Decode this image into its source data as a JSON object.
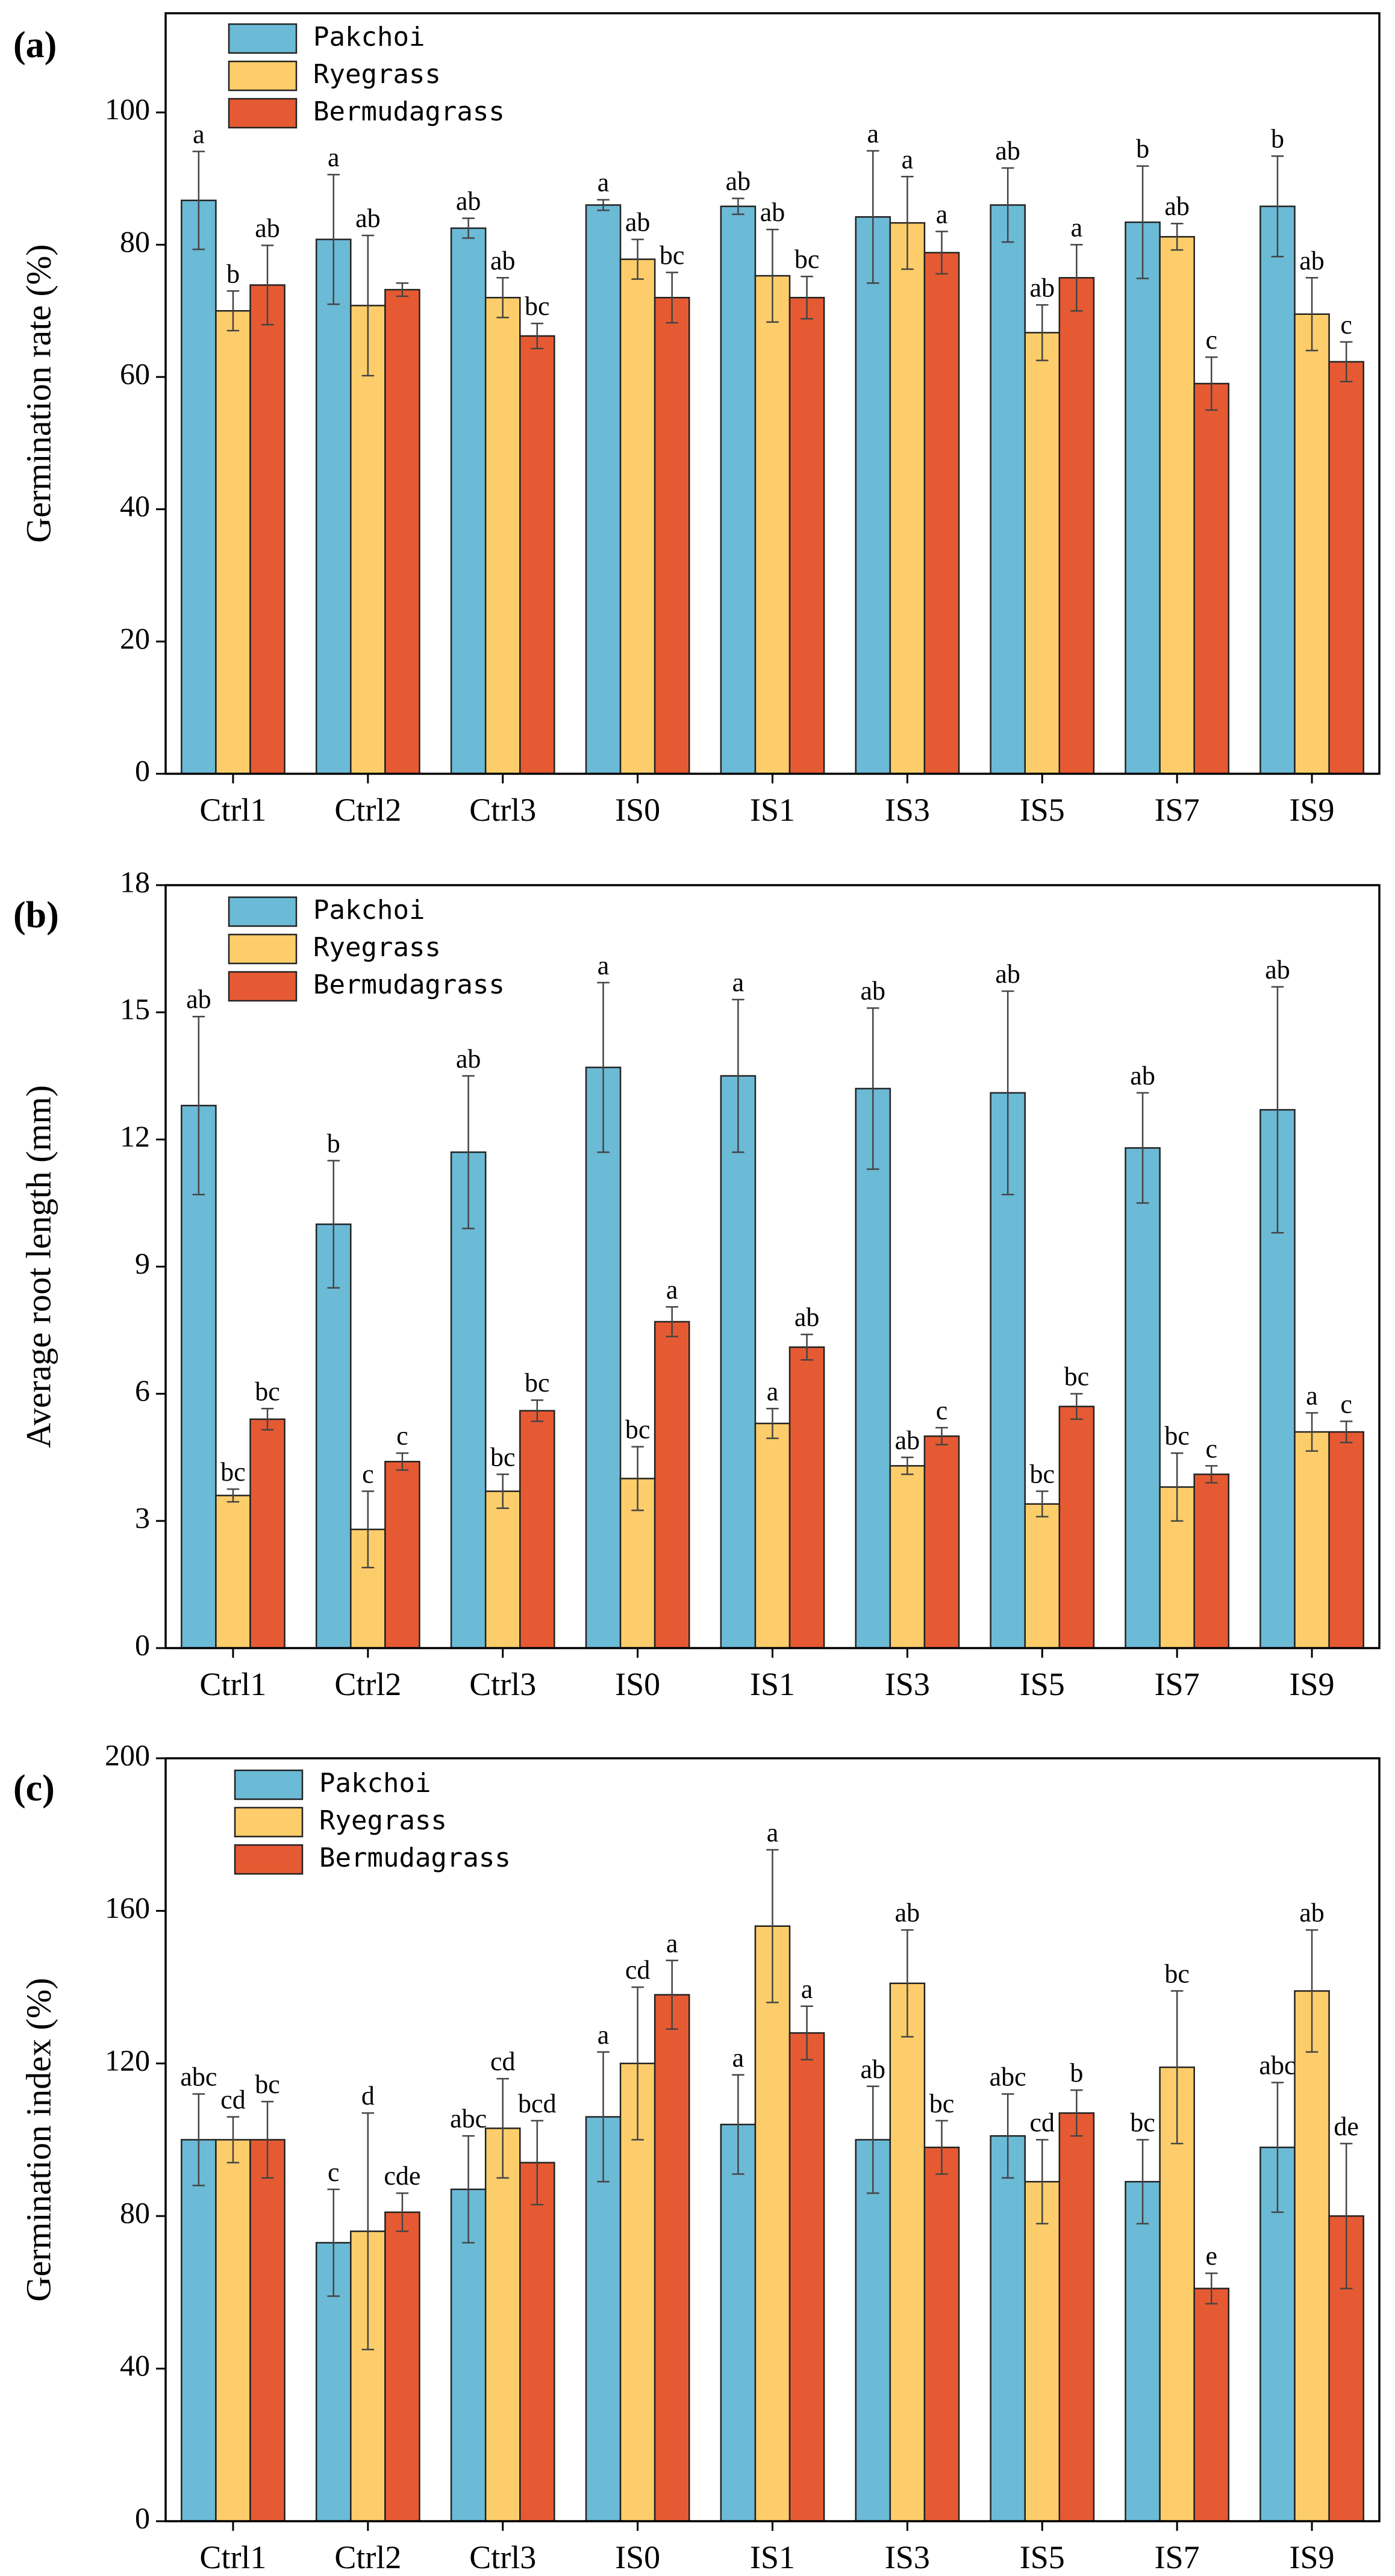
{
  "colors": {
    "Pakchoi": "#6BBAD6",
    "Ryegrass": "#FCCD6A",
    "Bermudagrass": "#E65A33"
  },
  "chart_data": [
    {
      "panel_label": "(a)",
      "type": "bar",
      "title": "",
      "xlabel": "",
      "ylabel": "Germination rate (%)",
      "ylim": [
        0,
        115
      ],
      "yticks": [
        0,
        20,
        40,
        60,
        80,
        100
      ],
      "ytick_labels": [
        "0",
        "20",
        "40",
        "60",
        "80",
        "100"
      ],
      "legend": [
        "Pakchoi",
        "Ryegrass",
        "Bermudagrass"
      ],
      "legend_position": "top-left",
      "categories": [
        "Ctrl1",
        "Ctrl2",
        "Ctrl3",
        "IS0",
        "IS1",
        "IS3",
        "IS5",
        "IS7",
        "IS9"
      ],
      "series": [
        {
          "name": "Pakchoi",
          "values": [
            86.7,
            80.8,
            82.5,
            86.0,
            85.8,
            84.2,
            86.0,
            83.4,
            85.8
          ],
          "errors": [
            7.4,
            9.8,
            1.5,
            0.8,
            1.2,
            10.0,
            5.6,
            8.5,
            7.6
          ],
          "labels": [
            "a",
            "a",
            "ab",
            "a",
            "ab",
            "a",
            "ab",
            "b",
            "b"
          ]
        },
        {
          "name": "Ryegrass",
          "values": [
            70.0,
            70.8,
            72.0,
            77.8,
            75.3,
            83.3,
            66.7,
            81.2,
            69.5
          ],
          "errors": [
            3.0,
            10.6,
            3.0,
            3.0,
            7.0,
            7.0,
            4.2,
            2.0,
            5.5
          ],
          "labels": [
            "b",
            "ab",
            "ab",
            "ab",
            "ab",
            "a",
            "ab",
            "ab",
            "ab"
          ]
        },
        {
          "name": "Bermudagrass",
          "values": [
            73.9,
            73.2,
            66.2,
            72.0,
            72.0,
            78.8,
            75.0,
            59.0,
            62.3
          ],
          "errors": [
            6.0,
            1.0,
            1.9,
            3.8,
            3.2,
            3.2,
            5.0,
            4.0,
            3.0
          ],
          "labels": [
            "ab",
            "",
            "bc",
            "bc",
            "bc",
            "a",
            "a",
            "c",
            "c"
          ]
        }
      ]
    },
    {
      "panel_label": "(b)",
      "type": "bar",
      "title": "",
      "xlabel": "",
      "ylabel": "Average root length (mm)",
      "ylim": [
        0,
        18
      ],
      "yticks": [
        0,
        3,
        6,
        9,
        12,
        15,
        18
      ],
      "ytick_labels": [
        "0",
        "3",
        "6",
        "9",
        "12",
        "15",
        "18"
      ],
      "legend": [
        "Pakchoi",
        "Ryegrass",
        "Bermudagrass"
      ],
      "legend_position": "top-left",
      "categories": [
        "Ctrl1",
        "Ctrl2",
        "Ctrl3",
        "IS0",
        "IS1",
        "IS3",
        "IS5",
        "IS7",
        "IS9"
      ],
      "series": [
        {
          "name": "Pakchoi",
          "values": [
            12.8,
            10.0,
            11.7,
            13.7,
            13.5,
            13.2,
            13.1,
            11.8,
            12.7
          ],
          "errors": [
            2.1,
            1.5,
            1.8,
            2.0,
            1.8,
            1.9,
            2.4,
            1.3,
            2.9
          ],
          "labels": [
            "ab",
            "b",
            "ab",
            "a",
            "a",
            "ab",
            "ab",
            "ab",
            "ab"
          ]
        },
        {
          "name": "Ryegrass",
          "values": [
            3.6,
            2.8,
            3.7,
            4.0,
            5.3,
            4.3,
            3.4,
            3.8,
            5.1
          ],
          "errors": [
            0.15,
            0.9,
            0.4,
            0.75,
            0.35,
            0.2,
            0.3,
            0.8,
            0.45
          ],
          "labels": [
            "bc",
            "c",
            "bc",
            "bc",
            "a",
            "ab",
            "bc",
            "bc",
            "a"
          ]
        },
        {
          "name": "Bermudagrass",
          "values": [
            5.4,
            4.4,
            5.6,
            7.7,
            7.1,
            5.0,
            5.7,
            4.1,
            5.1
          ],
          "errors": [
            0.25,
            0.2,
            0.25,
            0.35,
            0.3,
            0.2,
            0.3,
            0.2,
            0.25
          ],
          "labels": [
            "bc",
            "c",
            "bc",
            "a",
            "ab",
            "c",
            "bc",
            "c",
            "c"
          ]
        }
      ]
    },
    {
      "panel_label": "(c)",
      "type": "bar",
      "title": "",
      "xlabel": "",
      "ylabel": "Germination index (%)",
      "ylim": [
        0,
        200
      ],
      "yticks": [
        0,
        40,
        80,
        120,
        160,
        200
      ],
      "ytick_labels": [
        "0",
        "40",
        "80",
        "120",
        "160",
        "200"
      ],
      "legend": [
        "Pakchoi",
        "Ryegrass",
        "Bermudagrass"
      ],
      "legend_position": "top-left",
      "categories": [
        "Ctrl1",
        "Ctrl2",
        "Ctrl3",
        "IS0",
        "IS1",
        "IS3",
        "IS5",
        "IS7",
        "IS9"
      ],
      "series": [
        {
          "name": "Pakchoi",
          "values": [
            100,
            73,
            87,
            106,
            104,
            100,
            101,
            89,
            98
          ],
          "errors": [
            12,
            14,
            14,
            17,
            13,
            14,
            11,
            11,
            17
          ],
          "labels": [
            "abc",
            "c",
            "abc",
            "a",
            "a",
            "ab",
            "abc",
            "bc",
            "abc"
          ]
        },
        {
          "name": "Ryegrass",
          "values": [
            100,
            76,
            103,
            120,
            156,
            141,
            89,
            119,
            139
          ],
          "errors": [
            6,
            31,
            13,
            20,
            20,
            14,
            11,
            20,
            16
          ],
          "labels": [
            "cd",
            "d",
            "cd",
            "cd",
            "a",
            "ab",
            "cd",
            "bc",
            "ab"
          ]
        },
        {
          "name": "Bermudagrass",
          "values": [
            100,
            81,
            94,
            138,
            128,
            98,
            107,
            61,
            80
          ],
          "errors": [
            10,
            5,
            11,
            9,
            7,
            7,
            6,
            4,
            19
          ],
          "labels": [
            "bc",
            "cde",
            "bcd",
            "a",
            "a",
            "bc",
            "b",
            "e",
            "de"
          ]
        }
      ]
    }
  ]
}
